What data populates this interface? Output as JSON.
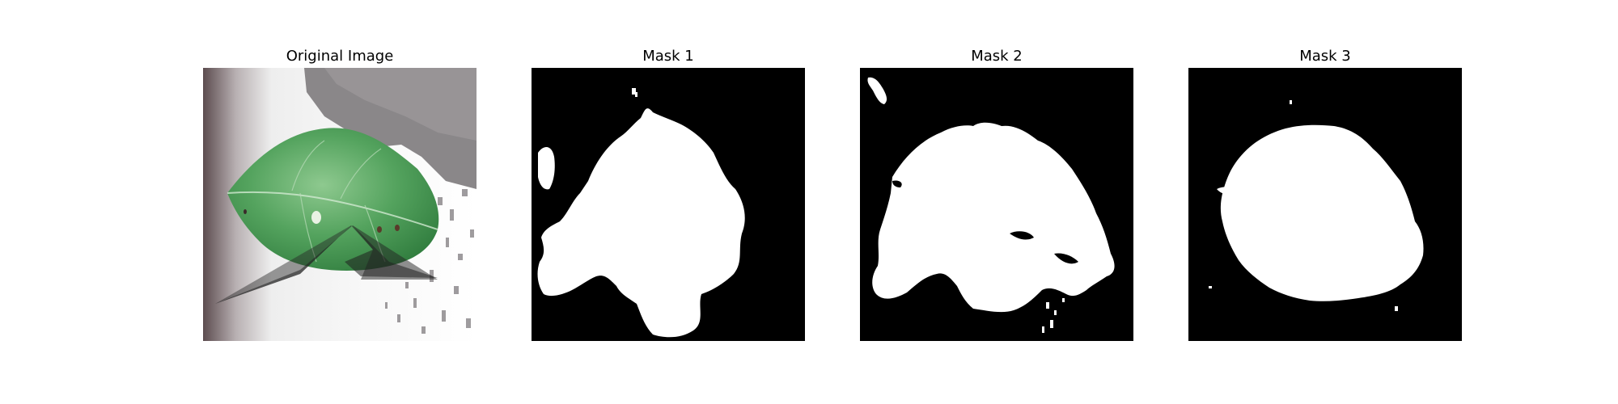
{
  "figure": {
    "panels": [
      {
        "title": "Original Image",
        "kind": "photo"
      },
      {
        "title": "Mask 1",
        "kind": "mask"
      },
      {
        "title": "Mask 2",
        "kind": "mask"
      },
      {
        "title": "Mask 3",
        "kind": "mask"
      }
    ]
  },
  "colors": {
    "background": "#ffffff",
    "mask_background": "#000000",
    "mask_foreground": "#ffffff",
    "leaf": "#4f9b58",
    "leaf_dark": "#2f6f3a",
    "shadow_triangle": "#1f1f1f"
  }
}
